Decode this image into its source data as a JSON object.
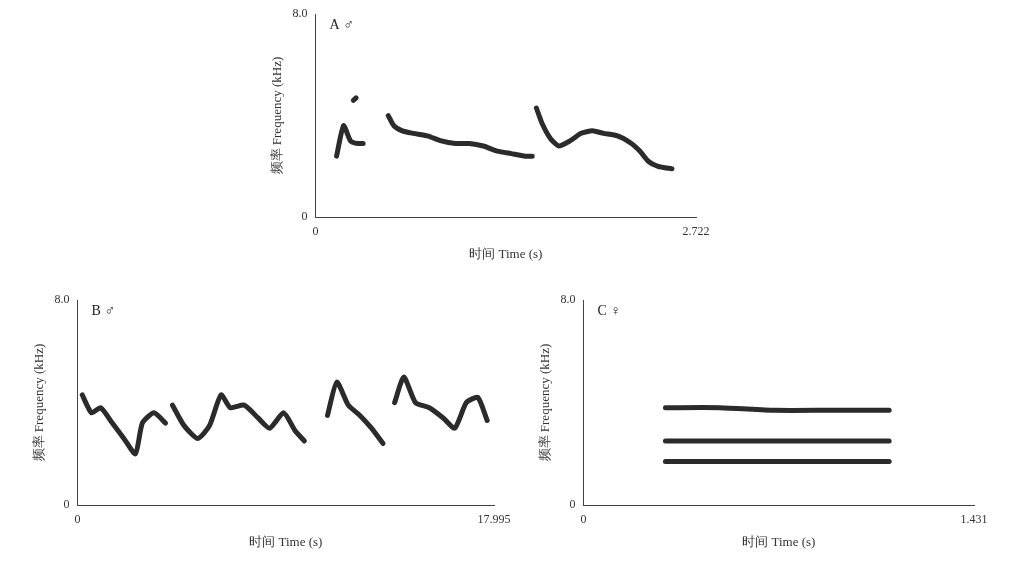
{
  "chart_data": [
    {
      "type": "line",
      "title": "A ♂",
      "x_label": "时间 Time (s)",
      "y_label": "频率 Frequency (kHz)",
      "xlim": [
        0,
        2.722
      ],
      "ylim": [
        0,
        8
      ],
      "xticks": [
        0,
        2.722
      ],
      "yticks": [
        0,
        {
          "value": 8,
          "label": "8.0"
        }
      ],
      "grid": false,
      "series": [
        {
          "color": "#2b2b2b",
          "x": [
            0.15,
            0.2,
            0.25,
            0.3,
            0.34
          ],
          "values": [
            2.4,
            3.6,
            3.0,
            2.9,
            2.9
          ]
        },
        {
          "color": "#2b2b2b",
          "x": [
            0.27,
            0.29
          ],
          "values": [
            4.6,
            4.7
          ]
        },
        {
          "color": "#2b2b2b",
          "x": [
            0.52,
            0.56,
            0.62,
            0.7,
            0.8,
            0.9,
            1.0,
            1.1,
            1.2,
            1.3,
            1.4,
            1.5,
            1.55
          ],
          "values": [
            4.0,
            3.6,
            3.4,
            3.3,
            3.2,
            3.0,
            2.9,
            2.9,
            2.8,
            2.6,
            2.5,
            2.4,
            2.4
          ]
        },
        {
          "color": "#2b2b2b",
          "x": [
            1.58,
            1.62,
            1.68,
            1.74,
            1.82,
            1.9,
            1.98,
            2.06,
            2.16,
            2.26,
            2.32,
            2.38,
            2.45,
            2.55
          ],
          "values": [
            4.3,
            3.7,
            3.1,
            2.8,
            3.0,
            3.3,
            3.4,
            3.3,
            3.2,
            2.9,
            2.6,
            2.2,
            2.0,
            1.9
          ]
        }
      ]
    },
    {
      "type": "line",
      "title": "B ♂",
      "x_label": "时间 Time (s)",
      "y_label": "频率 Frequency (kHz)",
      "xlim": [
        0,
        17.995
      ],
      "ylim": [
        0,
        8
      ],
      "xticks": [
        0,
        17.995
      ],
      "yticks": [
        0,
        {
          "value": 8,
          "label": "8.0"
        }
      ],
      "grid": false,
      "series": [
        {
          "color": "#2b2b2b",
          "x": [
            0.2,
            0.6,
            1.0,
            1.5,
            2.0,
            2.5,
            2.8,
            3.3,
            3.8
          ],
          "values": [
            4.3,
            3.6,
            3.8,
            3.2,
            2.6,
            2.0,
            3.2,
            3.6,
            3.2
          ]
        },
        {
          "color": "#2b2b2b",
          "x": [
            4.1,
            4.6,
            5.2,
            5.7,
            6.2,
            6.6,
            7.2,
            7.8,
            8.3,
            8.9,
            9.4,
            9.8
          ],
          "values": [
            3.9,
            3.1,
            2.6,
            3.1,
            4.3,
            3.8,
            3.9,
            3.4,
            3.0,
            3.6,
            2.9,
            2.5
          ]
        },
        {
          "color": "#2b2b2b",
          "x": [
            10.8,
            11.2,
            11.7,
            12.2,
            12.7,
            13.2
          ],
          "values": [
            3.5,
            4.8,
            3.9,
            3.5,
            3.0,
            2.4
          ]
        },
        {
          "color": "#2b2b2b",
          "x": [
            13.7,
            14.1,
            14.6,
            15.2,
            15.8,
            16.3,
            16.8,
            17.3,
            17.7
          ],
          "values": [
            4.0,
            5.0,
            4.0,
            3.8,
            3.4,
            3.0,
            4.0,
            4.2,
            3.3
          ]
        }
      ]
    },
    {
      "type": "line",
      "title": "C ♀",
      "x_label": "时间 Time (s)",
      "y_label": "频率 Frequency (kHz)",
      "xlim": [
        0,
        1.431
      ],
      "ylim": [
        0,
        8
      ],
      "xticks": [
        0,
        1.431
      ],
      "yticks": [
        0,
        {
          "value": 8,
          "label": "8.0"
        }
      ],
      "grid": false,
      "series": [
        {
          "color": "#2b2b2b",
          "x": [
            0.3,
            0.5,
            0.7,
            0.9,
            1.12
          ],
          "values": [
            3.8,
            3.8,
            3.7,
            3.7,
            3.7
          ]
        },
        {
          "color": "#2b2b2b",
          "x": [
            0.3,
            0.5,
            0.7,
            0.9,
            1.12
          ],
          "values": [
            2.5,
            2.5,
            2.5,
            2.5,
            2.5
          ]
        },
        {
          "color": "#2b2b2b",
          "x": [
            0.3,
            0.5,
            0.7,
            0.9,
            1.12
          ],
          "values": [
            1.7,
            1.7,
            1.7,
            1.7,
            1.7
          ]
        }
      ]
    }
  ]
}
